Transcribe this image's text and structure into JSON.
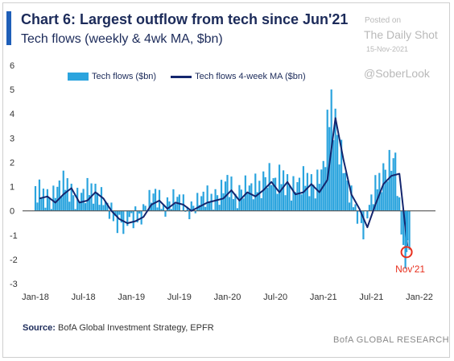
{
  "chart_data": {
    "type": "bar",
    "title": "Chart 6: Largest outflow from tech since Jun'21",
    "subtitle": "Tech flows (weekly & 4wk MA, $bn)",
    "ylim": [
      -3,
      6
    ],
    "yticks": [
      "-3",
      "-2",
      "-1",
      "0",
      "1",
      "2",
      "3",
      "4",
      "5",
      "6"
    ],
    "xticks": [
      "Jan-18",
      "Jul-18",
      "Jan-19",
      "Jul-19",
      "Jan-20",
      "Jul-20",
      "Jan-21",
      "Jul-21",
      "Jan-22"
    ],
    "legend": [
      "Tech flows ($bn)",
      "Tech flows 4-week MA ($bn)"
    ],
    "legend_position": "top-left",
    "grid": false,
    "colors": {
      "bars": "#2ba4de",
      "ma_line": "#14266e",
      "annotation": "#e8311f"
    },
    "monthly_flows": [
      {
        "month": "Jan-18",
        "flow": 0.6
      },
      {
        "month": "Feb-18",
        "flow": 0.7
      },
      {
        "month": "Mar-18",
        "flow": 0.4
      },
      {
        "month": "Apr-18",
        "flow": 0.8
      },
      {
        "month": "May-18",
        "flow": 1.1
      },
      {
        "month": "Jun-18",
        "flow": 0.4
      },
      {
        "month": "Jul-18",
        "flow": 0.5
      },
      {
        "month": "Aug-18",
        "flow": 0.9
      },
      {
        "month": "Sep-18",
        "flow": 0.6
      },
      {
        "month": "Oct-18",
        "flow": 0.0
      },
      {
        "month": "Nov-18",
        "flow": -0.4
      },
      {
        "month": "Dec-18",
        "flow": -0.6
      },
      {
        "month": "Jan-19",
        "flow": -0.5
      },
      {
        "month": "Feb-19",
        "flow": -0.3
      },
      {
        "month": "Mar-19",
        "flow": 0.3
      },
      {
        "month": "Apr-19",
        "flow": 0.5
      },
      {
        "month": "May-19",
        "flow": 0.1
      },
      {
        "month": "Jun-19",
        "flow": 0.4
      },
      {
        "month": "Jul-19",
        "flow": 0.3
      },
      {
        "month": "Aug-19",
        "flow": 0.0
      },
      {
        "month": "Sep-19",
        "flow": 0.2
      },
      {
        "month": "Oct-19",
        "flow": 0.4
      },
      {
        "month": "Nov-19",
        "flow": 0.5
      },
      {
        "month": "Dec-19",
        "flow": 0.6
      },
      {
        "month": "Jan-20",
        "flow": 1.0
      },
      {
        "month": "Feb-20",
        "flow": 0.5
      },
      {
        "month": "Mar-20",
        "flow": 0.9
      },
      {
        "month": "Apr-20",
        "flow": 0.7
      },
      {
        "month": "May-20",
        "flow": 1.0
      },
      {
        "month": "Jun-20",
        "flow": 1.4
      },
      {
        "month": "Jul-20",
        "flow": 0.9
      },
      {
        "month": "Aug-20",
        "flow": 1.4
      },
      {
        "month": "Sep-20",
        "flow": 0.8
      },
      {
        "month": "Oct-20",
        "flow": 0.9
      },
      {
        "month": "Nov-20",
        "flow": 1.3
      },
      {
        "month": "Dec-20",
        "flow": 0.9
      },
      {
        "month": "Jan-21",
        "flow": 1.5
      },
      {
        "month": "Feb-21",
        "flow": 4.5
      },
      {
        "month": "Mar-21",
        "flow": 2.5
      },
      {
        "month": "Apr-21",
        "flow": 0.8
      },
      {
        "month": "May-21",
        "flow": 0.1
      },
      {
        "month": "Jun-21",
        "flow": -0.8
      },
      {
        "month": "Jul-21",
        "flow": 0.3
      },
      {
        "month": "Aug-21",
        "flow": 1.3
      },
      {
        "month": "Sep-21",
        "flow": 1.7
      },
      {
        "month": "Oct-21",
        "flow": 1.8
      },
      {
        "month": "Nov-21",
        "flow": -1.7
      }
    ],
    "annotation": {
      "label": "Nov'21",
      "value": -1.7
    }
  },
  "watermark": {
    "posted_on": "Posted on",
    "site": "The Daily Shot",
    "date": "15-Nov-2021",
    "handle": "@SoberLook"
  },
  "footer": {
    "source_label": "Source:",
    "source_text": "BofA Global Investment Strategy, EPFR",
    "brand": "BofA GLOBAL RESEARCH"
  }
}
